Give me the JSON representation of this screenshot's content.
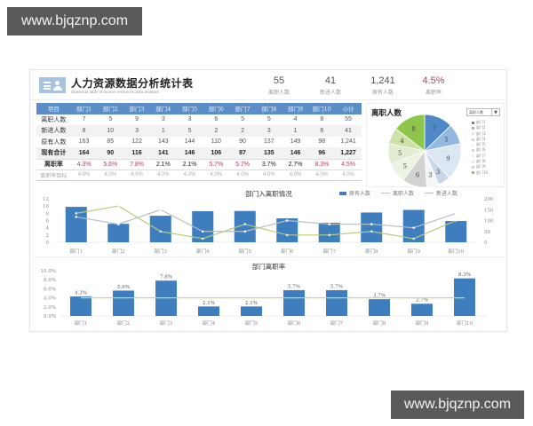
{
  "watermarks": {
    "top": "www.bjqznp.com",
    "bottom": "www.bjqznp.com"
  },
  "header": {
    "title": "人力资源数据分析统计表",
    "subtitle": "Statistical table of human resources data analysis",
    "logo_icon": "person-list-icon"
  },
  "kpis": [
    {
      "value": "55",
      "label": "离职人数"
    },
    {
      "value": "41",
      "label": "新进人数"
    },
    {
      "value": "1,241",
      "label": "原有人数"
    },
    {
      "value": "4.5%",
      "label": "离职率"
    }
  ],
  "table": {
    "headers": [
      "项目",
      "部门1",
      "部门2",
      "部门3",
      "部门4",
      "部门5",
      "部门6",
      "部门7",
      "部门8",
      "部门9",
      "部门10",
      "小计"
    ],
    "rows": [
      {
        "label": "离职人数",
        "values": [
          "7",
          "5",
          "9",
          "3",
          "3",
          "6",
          "5",
          "5",
          "4",
          "8",
          "55"
        ]
      },
      {
        "label": "新进人数",
        "values": [
          "8",
          "10",
          "3",
          "1",
          "5",
          "2",
          "2",
          "3",
          "1",
          "6",
          "41"
        ]
      },
      {
        "label": "原有人数",
        "values": [
          "163",
          "85",
          "122",
          "143",
          "144",
          "110",
          "90",
          "137",
          "149",
          "98",
          "1,241"
        ]
      },
      {
        "label": "现有合计",
        "values": [
          "164",
          "90",
          "116",
          "141",
          "146",
          "106",
          "87",
          "135",
          "146",
          "96",
          "1,227"
        ]
      },
      {
        "label": "离职率",
        "values": [
          "4.3%",
          "5.6%",
          "7.8%",
          "2.1%",
          "2.1%",
          "5.7%",
          "5.7%",
          "3.7%",
          "2.7%",
          "8.3%",
          "4.5%"
        ]
      },
      {
        "label": "离职率目标",
        "values": [
          "4.0%",
          "4.0%",
          "4.0%",
          "4.0%",
          "4.0%",
          "4.0%",
          "4.0%",
          "4.0%",
          "4.0%",
          "4.0%",
          "4.0%"
        ]
      }
    ]
  },
  "pie": {
    "title": "离职人数",
    "select_value": "离职人数",
    "select_icon": "dropdown-arrow-icon",
    "legend": [
      "部门1",
      "部门2",
      "部门3",
      "部门4",
      "部门5",
      "部门6",
      "部门7",
      "部门8",
      "部门9",
      "部门10"
    ]
  },
  "colors": {
    "header_blue": "#5b8ec6",
    "bar_blue": "#3e7ebf",
    "line_grey": "#b8bfc6",
    "line_green": "#b5cc7a",
    "rate_red": "#b0425a",
    "target_line": "#c5d89a"
  },
  "chart_data": [
    {
      "type": "pie",
      "title": "离职人数",
      "categories": [
        "部门1",
        "部门2",
        "部门3",
        "部门4",
        "部门5",
        "部门6",
        "部门7",
        "部门8",
        "部门9",
        "部门10"
      ],
      "values": [
        7,
        5,
        9,
        3,
        3,
        6,
        5,
        5,
        4,
        8
      ],
      "colors": [
        "#4e88c7",
        "#93b9e0",
        "#dde7f4",
        "#c9d6e8",
        "#f3f5f7",
        "#d2d2d2",
        "#edf3e3",
        "#e2ecd3",
        "#cce3a8",
        "#8dc64a"
      ],
      "legend_position": "right"
    },
    {
      "type": "bar",
      "title": "部门入离职情况",
      "categories": [
        "部门1",
        "部门2",
        "部门3",
        "部门4",
        "部门5",
        "部门6",
        "部门7",
        "部门8",
        "部门9",
        "部门10"
      ],
      "series": [
        {
          "name": "原有人数",
          "kind": "bar",
          "axis": "right",
          "values": [
            163,
            85,
            122,
            143,
            144,
            110,
            90,
            137,
            149,
            98
          ]
        },
        {
          "name": "离职人数",
          "kind": "line",
          "axis": "left",
          "values": [
            7,
            5,
            9,
            3,
            3,
            6,
            5,
            5,
            4,
            8
          ]
        },
        {
          "name": "新进人数",
          "kind": "line",
          "axis": "left",
          "values": [
            8,
            10,
            3,
            1,
            5,
            2,
            2,
            3,
            1,
            6
          ]
        }
      ],
      "left_axis": {
        "ticks": [
          "0",
          "2",
          "4",
          "6",
          "8",
          "10",
          "12"
        ],
        "ylim": [
          0,
          12
        ]
      },
      "right_axis": {
        "ticks": [
          "0",
          "50",
          "100",
          "150",
          "200"
        ],
        "ylim": [
          0,
          200
        ]
      },
      "legend_position": "top-right",
      "grid": false
    },
    {
      "type": "bar",
      "title": "部门离职率",
      "categories": [
        "部门1",
        "部门2",
        "部门3",
        "部门4",
        "部门5",
        "部门6",
        "部门7",
        "部门8",
        "部门9",
        "部门10"
      ],
      "series": [
        {
          "name": "离职率",
          "kind": "bar",
          "values": [
            4.3,
            5.6,
            7.8,
            2.1,
            2.1,
            5.7,
            5.7,
            3.7,
            2.7,
            8.3
          ],
          "labels": [
            "4.3%",
            "5.6%",
            "7.8%",
            "2.1%",
            "2.1%",
            "5.7%",
            "5.7%",
            "3.7%",
            "2.7%",
            "8.3%"
          ]
        },
        {
          "name": "离职率目标",
          "kind": "line",
          "values": [
            4.0,
            4.0,
            4.0,
            4.0,
            4.0,
            4.0,
            4.0,
            4.0,
            4.0,
            4.0
          ]
        }
      ],
      "y_axis": {
        "ticks": [
          "0.0%",
          "2.0%",
          "4.0%",
          "6.0%",
          "8.0%",
          "10.0%"
        ],
        "ylim": [
          0,
          10
        ]
      },
      "grid": false
    }
  ]
}
